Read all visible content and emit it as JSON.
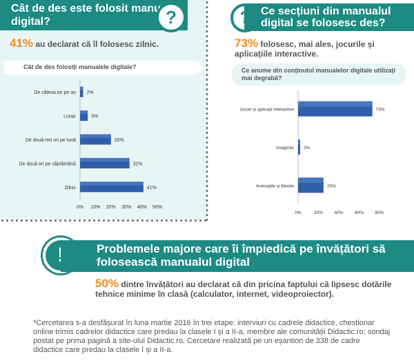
{
  "left": {
    "title": "Cât de des este folosit manualul digital?",
    "stat_pct": "41%",
    "stat_text": " au declarat că îl folosesc zilnic.",
    "chart_title": "Cât de des folosiți manualele digitale?"
  },
  "right": {
    "title": "Ce secțiuni din manualul digital se folosesc des?",
    "stat_pct": "73%",
    "stat_text": " folosesc, mai ales, jocurile și aplicațiile interactive.",
    "chart_title": "Ce anume din conținutul manualelor digitale utilizați mai degrabă?"
  },
  "bottom": {
    "title": "Problemele majore care îi împiedică pe învățători să folosească manualul digital",
    "stat_pct": "50%",
    "stat_text": " dintre învățători au declarat că din pricina faptului că lipsesc dotările tehnice minime în clasă (calculator, internet, videoproiector).",
    "footnote": "*Cercetarea s-a desfășurat în luna martie 2016 în trei etape: interviuri cu cadrele didactice, chestionar online trimis cadrelor didactice care predau la clasele I și a II-a, membre ale comunității Didactic.ro; sondaj postat pe prima pagină a site-ului Didactic.ro. Cercetare realizată pe un eșantion de 338 de cadre didactice care predau la clasele I și a II-a."
  },
  "icons": {
    "question": "?",
    "exclamation": "!"
  },
  "colors": {
    "teal": "#1d8a83",
    "orange": "#f08c1e",
    "bar": "#2f5fa8",
    "panel": "#e7f5f4"
  },
  "chart_data": [
    {
      "type": "bar",
      "orientation": "horizontal",
      "title": "Cât de des folosiți manualele digitale?",
      "categories": [
        "De câteva ori pe an",
        "Lunar",
        "De două-trei ori pe lună",
        "De două ori pe săptămână",
        "Zilnic"
      ],
      "values": [
        2,
        5,
        20,
        32,
        41
      ],
      "value_labels": [
        "2%",
        "5%",
        "20%",
        "32%",
        "41%"
      ],
      "xlim": [
        0,
        50
      ],
      "xticks": [
        "0%",
        "10%",
        "20%",
        "30%",
        "40%",
        "50%"
      ]
    },
    {
      "type": "bar",
      "orientation": "horizontal",
      "title": "Ce anume din conținutul manualelor digitale utilizați mai degrabă?",
      "categories": [
        "Jocuri și aplicații interactive",
        "Imaginile",
        "Animațiile și filmele"
      ],
      "values": [
        73,
        2,
        25
      ],
      "value_labels": [
        "73%",
        "2%",
        "25%"
      ],
      "xlim": [
        0,
        80
      ],
      "xticks": [
        "0%",
        "20%",
        "40%",
        "60%",
        "80%"
      ]
    }
  ]
}
